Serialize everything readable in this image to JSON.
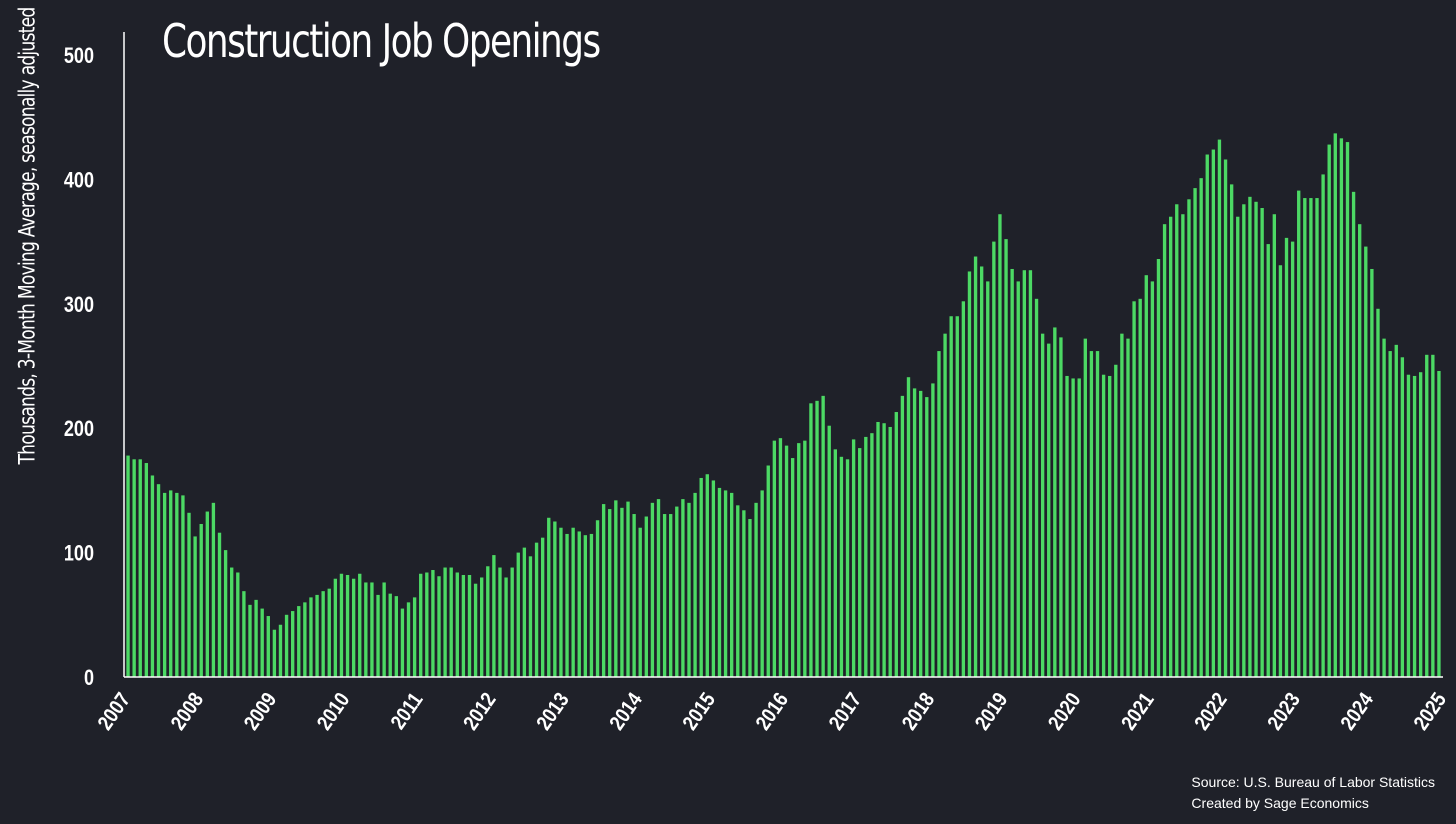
{
  "chart_data": {
    "type": "bar",
    "title": "Construction Job Openings",
    "ylabel": "Thousands, 3-Month Moving Average, seasonally adjusted",
    "xlabel": "",
    "ylim": [
      0,
      520
    ],
    "yticks": [
      0,
      100,
      200,
      300,
      400,
      500
    ],
    "xtick_labels": [
      "2007",
      "2008",
      "2009",
      "2010",
      "2011",
      "2012",
      "2013",
      "2014",
      "2015",
      "2016",
      "2017",
      "2018",
      "2019",
      "2020",
      "2021",
      "2022",
      "2023",
      "2024",
      "2025"
    ],
    "x_start": "2007-01",
    "x_end": "2025-01",
    "grid": false,
    "bar_color": "#4cd964",
    "series": [
      {
        "values": [
          178,
          175,
          175,
          172,
          162,
          155,
          148,
          150,
          148,
          146,
          132,
          113,
          123,
          133,
          140,
          116,
          102,
          88,
          84,
          69,
          58,
          62,
          55,
          49,
          38,
          42,
          50,
          53,
          57,
          60,
          64,
          66,
          69,
          71,
          79,
          83,
          82,
          79,
          83,
          76,
          76,
          66,
          76,
          67,
          65,
          55,
          60,
          64,
          83,
          84,
          86,
          81,
          88,
          88,
          84,
          82,
          82,
          75,
          80,
          89,
          98,
          88,
          80,
          88,
          100,
          104,
          97,
          108,
          112,
          128,
          125,
          120,
          115,
          120,
          117,
          114,
          115,
          126,
          139,
          135,
          142,
          136,
          141,
          131,
          120,
          129,
          140,
          143,
          131,
          131,
          137,
          143,
          140,
          148,
          160,
          163,
          158,
          152,
          150,
          148,
          138,
          134,
          127,
          140,
          150,
          170,
          190,
          192,
          186,
          176,
          188,
          190,
          220,
          222,
          226,
          202,
          183,
          177,
          175,
          191,
          184,
          193,
          196,
          205,
          204,
          201,
          213,
          226,
          241,
          232,
          230,
          225,
          236,
          262,
          276,
          290,
          290,
          302,
          326,
          338,
          330,
          318,
          350,
          372,
          352,
          328,
          318,
          327,
          327,
          304,
          276,
          268,
          281,
          273,
          242,
          240,
          240,
          272,
          262,
          262,
          243,
          242,
          251,
          276,
          272,
          302,
          304,
          323,
          318,
          336,
          364,
          370,
          380,
          372,
          384,
          393,
          401,
          420,
          424,
          432,
          416,
          396,
          370,
          380,
          386,
          382,
          377,
          348,
          372,
          331,
          353,
          350,
          391,
          385,
          385,
          385,
          404,
          428,
          437,
          433,
          430,
          390,
          364,
          346,
          328,
          296,
          272,
          262,
          267,
          257,
          243,
          242,
          245,
          259,
          259,
          246
        ]
      }
    ]
  },
  "source": {
    "line1": "Source: U.S. Bureau of Labor Statistics",
    "line2": "Created by Sage Economics"
  }
}
